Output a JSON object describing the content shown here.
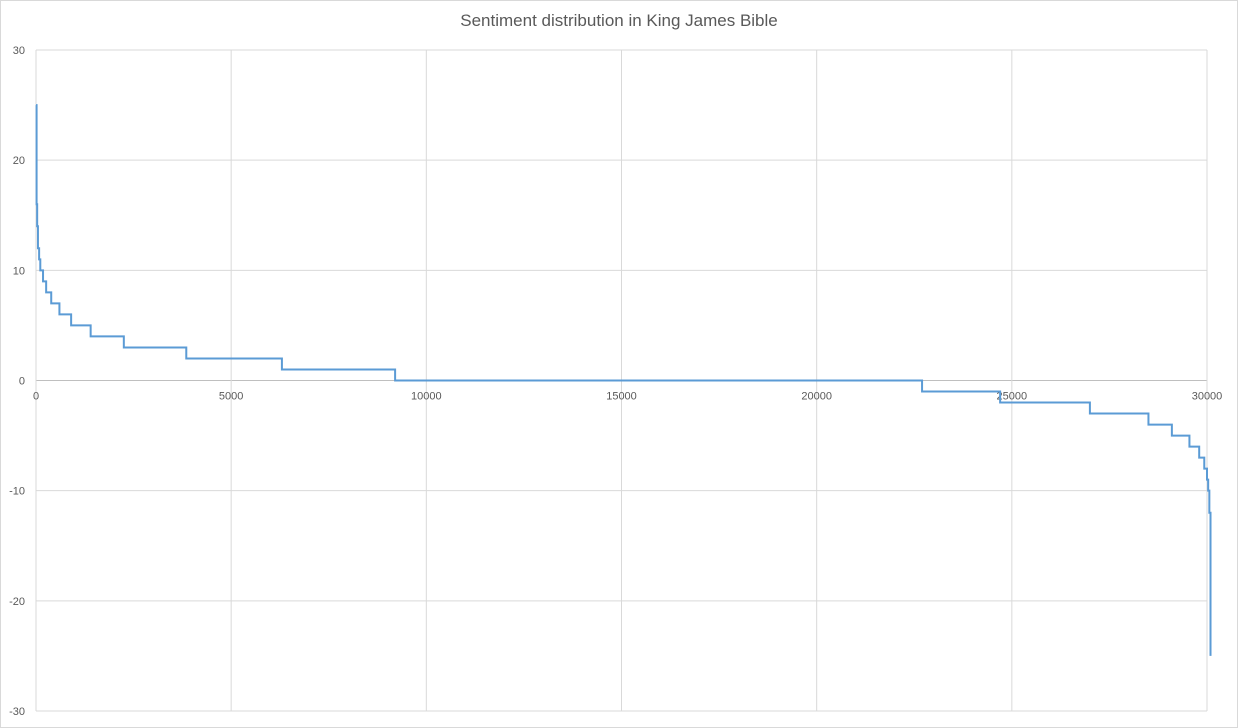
{
  "chart_data": {
    "type": "line",
    "title": "Sentiment distribution in King James Bible",
    "xlabel": "",
    "ylabel": "",
    "xlim": [
      0,
      30000
    ],
    "ylim": [
      -30,
      30
    ],
    "x_ticks": [
      0,
      5000,
      10000,
      15000,
      20000,
      25000,
      30000
    ],
    "y_ticks": [
      -30,
      -20,
      -10,
      0,
      10,
      20,
      30
    ],
    "grid": true,
    "legend": "none",
    "line_color": "#5b9bd5",
    "step": true,
    "series": [
      {
        "points": [
          [
            0,
            25
          ],
          [
            15,
            16
          ],
          [
            30,
            14
          ],
          [
            50,
            12
          ],
          [
            80,
            11
          ],
          [
            110,
            10
          ],
          [
            180,
            9
          ],
          [
            260,
            8
          ],
          [
            390,
            7
          ],
          [
            600,
            6
          ],
          [
            900,
            5
          ],
          [
            1400,
            4
          ],
          [
            2250,
            3
          ],
          [
            3850,
            2
          ],
          [
            6300,
            1
          ],
          [
            9200,
            0
          ],
          [
            22700,
            -1
          ],
          [
            24700,
            -2
          ],
          [
            27000,
            -3
          ],
          [
            28500,
            -4
          ],
          [
            29100,
            -5
          ],
          [
            29550,
            -6
          ],
          [
            29800,
            -7
          ],
          [
            29930,
            -8
          ],
          [
            30000,
            -9
          ],
          [
            30030,
            -10
          ],
          [
            30060,
            -12
          ],
          [
            30090,
            -25
          ]
        ]
      }
    ]
  }
}
